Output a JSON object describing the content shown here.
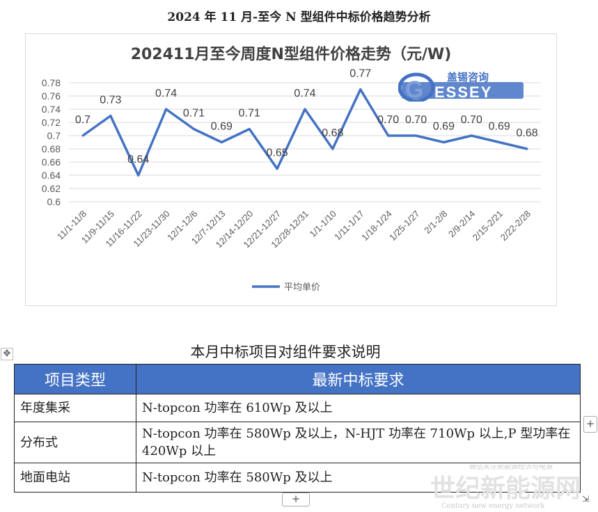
{
  "doc_title": "2024 年 11 月-至今 N 型组件中标价格趋势分析",
  "colors": {
    "line": "#4472c4",
    "header_bg": "#4472c4",
    "grid": "#d9d9d9",
    "logo_blue": "#4472c4"
  },
  "logo": {
    "text_cn": "盖锡咨询",
    "text_en": "ESSEY",
    "letter": "G"
  },
  "chart_data": {
    "type": "line",
    "title": "202411月至今周度N型组件价格走势（元/W)",
    "categories": [
      "11/1-11/8",
      "11/9-11/15",
      "11/16-11/22",
      "11/23-11/30",
      "12/1-12/6",
      "12/7-12/13",
      "12/14-12/20",
      "12/21-12/27",
      "12/28-12/31",
      "1/1-1/10",
      "1/11-1/17",
      "1/18-1/24",
      "1/25-1/27",
      "2/1-2/8",
      "2/9-2/14",
      "2/15-2/21",
      "2/22-2/28"
    ],
    "series": [
      {
        "name": "平均单价",
        "values": [
          0.7,
          0.73,
          0.64,
          0.74,
          0.71,
          0.69,
          0.71,
          0.65,
          0.74,
          0.68,
          0.77,
          0.7,
          0.7,
          0.69,
          0.7,
          0.69,
          0.68
        ],
        "labels": [
          "0.7",
          "0.73",
          "0.64",
          "0.74",
          "0.71",
          "0.69",
          "0.71",
          "0.65",
          "0.74",
          "0.68",
          "0.77",
          "0.70",
          "0.70",
          "0.69",
          "0.70",
          "0.69",
          "0.68"
        ]
      }
    ],
    "ylim": [
      0.6,
      0.78
    ],
    "yticks": [
      "0.6",
      "0.62",
      "0.64",
      "0.66",
      "0.68",
      "0.7",
      "0.72",
      "0.74",
      "0.76",
      "0.78"
    ],
    "grid": "horizontal",
    "legend": "bottom"
  },
  "table": {
    "title": "本月中标项目对组件要求说明",
    "headers": [
      "项目类型",
      "最新中标要求"
    ],
    "rows": [
      {
        "type": "年度集采",
        "req": "N-topcon 功率在 610Wp 及以上"
      },
      {
        "type": "分布式",
        "req": "N-topcon 功率在 580Wp 及以上，N-HJT 功率在 710Wp 以上,P 型功率在 420Wp 以上"
      },
      {
        "type": "地面电站",
        "req": "N-topcon 功率在 580Wp 及以上"
      }
    ]
  },
  "ui": {
    "move_icon": "✥",
    "plus": "+",
    "resize_icon": "⇲"
  },
  "watermark": {
    "top_text": "微信关注新能源经济与电源",
    "main_text": "世纪新能源网",
    "sub_text": "Century new energy network"
  }
}
